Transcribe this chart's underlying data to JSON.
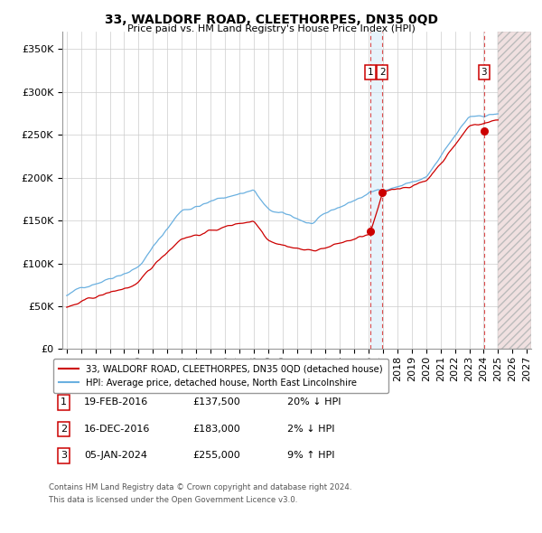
{
  "title": "33, WALDORF ROAD, CLEETHORPES, DN35 0QD",
  "subtitle": "Price paid vs. HM Land Registry's House Price Index (HPI)",
  "ylabel_ticks": [
    "£0",
    "£50K",
    "£100K",
    "£150K",
    "£200K",
    "£250K",
    "£300K",
    "£350K"
  ],
  "ytick_vals": [
    0,
    50000,
    100000,
    150000,
    200000,
    250000,
    300000,
    350000
  ],
  "ylim": [
    0,
    370000
  ],
  "xlim_start": 1994.7,
  "xlim_end": 2027.3,
  "legend_line1": "33, WALDORF ROAD, CLEETHORPES, DN35 0QD (detached house)",
  "legend_line2": "HPI: Average price, detached house, North East Lincolnshire",
  "sale1_date": "19-FEB-2016",
  "sale1_price": "£137,500",
  "sale1_hpi": "20% ↓ HPI",
  "sale1_year": 2016.13,
  "sale1_val": 137500,
  "sale2_date": "16-DEC-2016",
  "sale2_price": "£183,000",
  "sale2_hpi": "2% ↓ HPI",
  "sale2_year": 2016.96,
  "sale2_val": 183000,
  "sale3_date": "05-JAN-2024",
  "sale3_price": "£255,000",
  "sale3_hpi": "9% ↑ HPI",
  "sale3_year": 2024.02,
  "sale3_val": 255000,
  "footer1": "Contains HM Land Registry data © Crown copyright and database right 2024.",
  "footer2": "This data is licensed under the Open Government Licence v3.0.",
  "hpi_color": "#6ab0e0",
  "price_color": "#cc0000",
  "grid_color": "#cccccc",
  "background_color": "#ffffff",
  "future_start": 2025.0
}
